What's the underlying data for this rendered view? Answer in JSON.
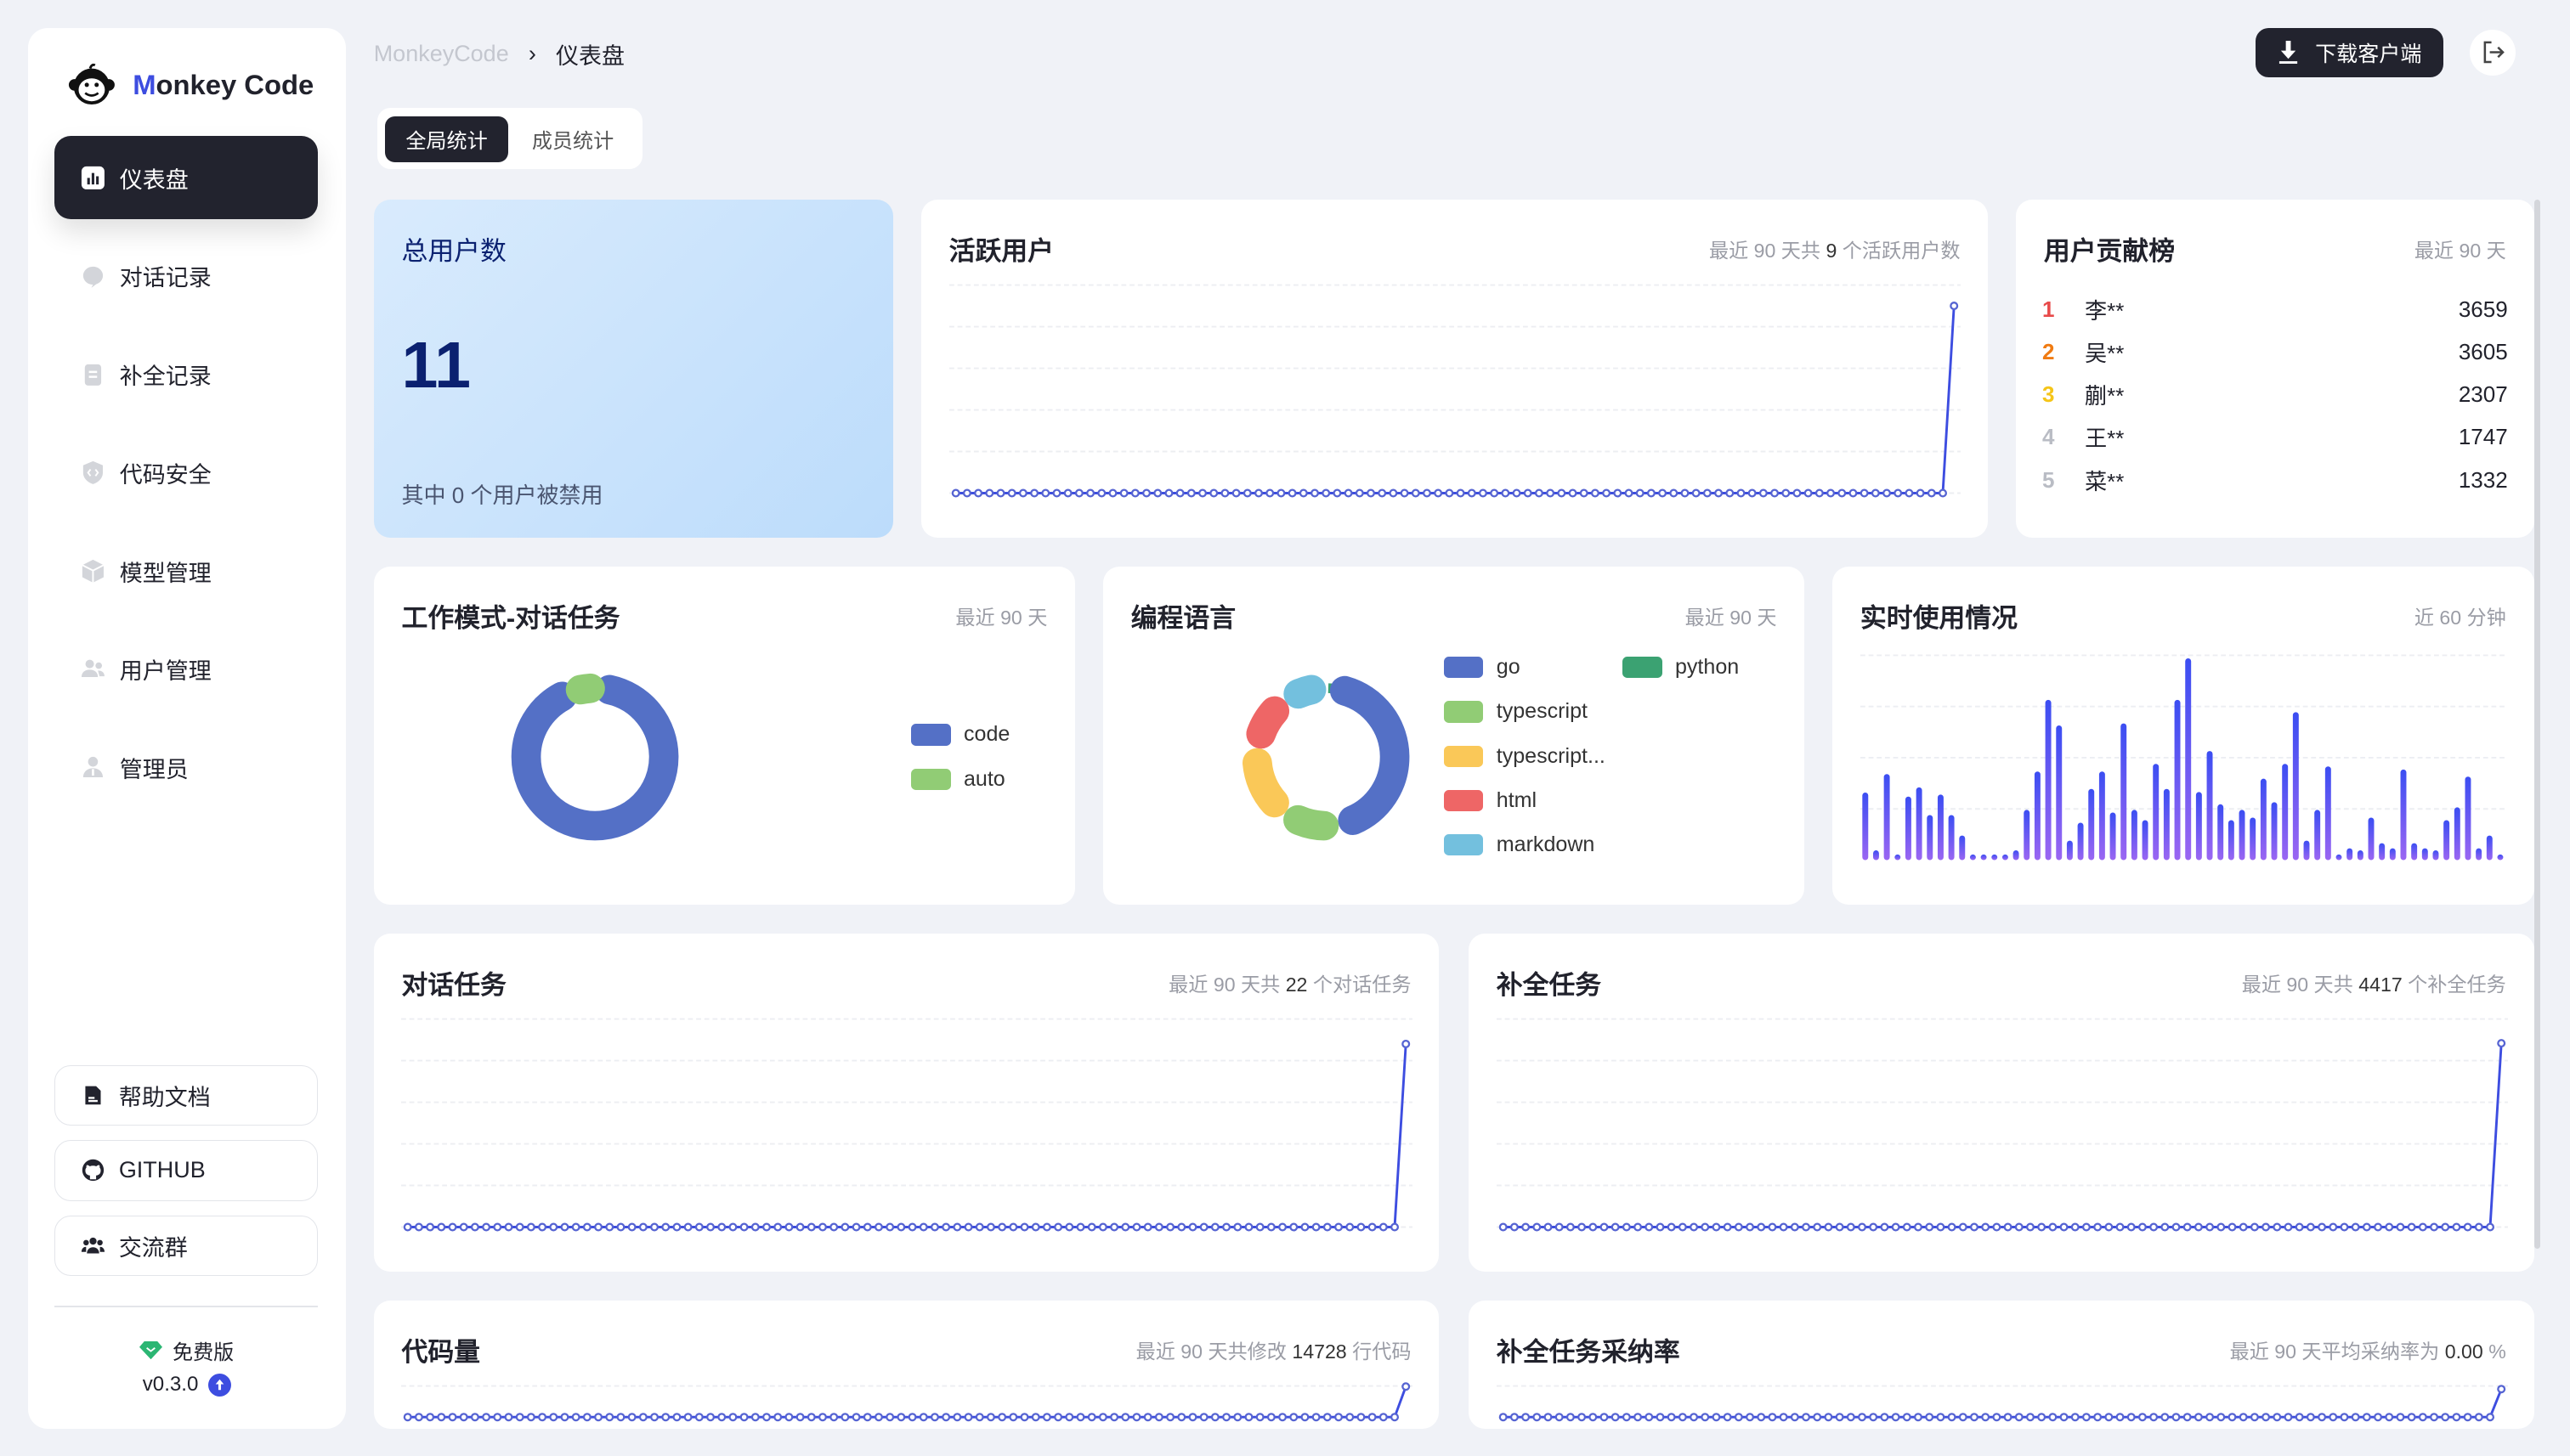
{
  "brand": {
    "prefix": "M",
    "rest": "onkey Code"
  },
  "sidebar": {
    "items": [
      {
        "label": "仪表盘",
        "icon": "bar-chart-icon",
        "active": true
      },
      {
        "label": "对话记录",
        "icon": "chat-bubble-icon"
      },
      {
        "label": "补全记录",
        "icon": "clipboard-icon"
      },
      {
        "label": "代码安全",
        "icon": "shield-code-icon"
      },
      {
        "label": "模型管理",
        "icon": "cube-icon"
      },
      {
        "label": "用户管理",
        "icon": "users-icon"
      },
      {
        "label": "管理员",
        "icon": "admin-icon"
      }
    ],
    "buttons": [
      {
        "label": "帮助文档",
        "icon": "document-icon"
      },
      {
        "label": "GITHUB",
        "icon": "github-icon"
      },
      {
        "label": "交流群",
        "icon": "group-icon"
      }
    ],
    "plan": "免费版",
    "version": "v0.3.0"
  },
  "breadcrumb": {
    "root": "MonkeyCode",
    "sep": "›",
    "current": "仪表盘"
  },
  "tabs": [
    {
      "label": "全局统计",
      "active": true
    },
    {
      "label": "成员统计"
    }
  ],
  "header": {
    "download_label": "下载客户端"
  },
  "cards": {
    "total_users": {
      "title": "总用户数",
      "value": "11",
      "note": "其中 0 个用户被禁用"
    },
    "active_users": {
      "title": "活跃用户",
      "sub_pre": "最近 90 天共",
      "sub_num": "9",
      "sub_post": "个活跃用户数"
    },
    "ranking": {
      "title": "用户贡献榜",
      "sub": "最近 90 天",
      "rows": [
        {
          "rank": "1",
          "name": "李**",
          "value": "3659",
          "color": "#e84a4a"
        },
        {
          "rank": "2",
          "name": "吴**",
          "value": "3605",
          "color": "#f07b12"
        },
        {
          "rank": "3",
          "name": "蒯**",
          "value": "2307",
          "color": "#f5c518"
        },
        {
          "rank": "4",
          "name": "王**",
          "value": "1747",
          "color": "#b9bcc4"
        },
        {
          "rank": "5",
          "name": "菜**",
          "value": "1332",
          "color": "#b9bcc4"
        }
      ]
    },
    "work_mode": {
      "title": "工作模式-对话任务",
      "sub": "最近 90 天"
    },
    "languages": {
      "title": "编程语言",
      "sub": "最近 90 天"
    },
    "realtime": {
      "title": "实时使用情况",
      "sub": "近 60 分钟"
    },
    "dialog_tasks": {
      "title": "对话任务",
      "sub_pre": "最近 90 天共",
      "sub_num": "22",
      "sub_post": "个对话任务"
    },
    "completion_tasks": {
      "title": "补全任务",
      "sub_pre": "最近 90 天共",
      "sub_num": "4417",
      "sub_post": "个补全任务"
    },
    "code_lines": {
      "title": "代码量",
      "sub_pre": "最近 90 天共修改",
      "sub_num": "14728",
      "sub_post": "行代码"
    },
    "adoption": {
      "title": "补全任务采纳率",
      "sub_pre": "最近 90 天平均采纳率为",
      "sub_num": "0.00",
      "sub_post": "%"
    }
  },
  "chart_data": [
    {
      "id": "active_users",
      "type": "line",
      "grid": true,
      "ylim": [
        0,
        10
      ],
      "values": [
        0,
        0,
        0,
        0,
        0,
        0,
        0,
        0,
        0,
        0,
        0,
        0,
        0,
        0,
        0,
        0,
        0,
        0,
        0,
        0,
        0,
        0,
        0,
        0,
        0,
        0,
        0,
        0,
        0,
        0,
        0,
        0,
        0,
        0,
        0,
        0,
        0,
        0,
        0,
        0,
        0,
        0,
        0,
        0,
        0,
        0,
        0,
        0,
        0,
        0,
        0,
        0,
        0,
        0,
        0,
        0,
        0,
        0,
        0,
        0,
        0,
        0,
        0,
        0,
        0,
        0,
        0,
        0,
        0,
        0,
        0,
        0,
        0,
        0,
        0,
        0,
        0,
        0,
        0,
        0,
        0,
        0,
        0,
        0,
        0,
        0,
        0,
        0,
        0,
        9
      ],
      "color": "#3d4de0"
    },
    {
      "id": "work_mode",
      "type": "pie",
      "donut": true,
      "legend": "right",
      "categories": [
        "code",
        "auto"
      ],
      "values": [
        21,
        1
      ],
      "colors": [
        "#5470c6",
        "#91cc75"
      ]
    },
    {
      "id": "languages",
      "type": "pie",
      "donut": true,
      "legend": "right",
      "categories": [
        "python",
        "go",
        "typescript",
        "typescript...",
        "html",
        "markdown"
      ],
      "values": [
        1,
        46,
        13,
        17,
        13,
        10
      ],
      "colors": [
        "#3ba272",
        "#5470c6",
        "#91cc75",
        "#fac858",
        "#ee6666",
        "#73c0de"
      ]
    },
    {
      "id": "realtime",
      "type": "bar",
      "grid": true,
      "ylim": [
        0,
        4
      ],
      "values": [
        1.32,
        0.19,
        1.68,
        0.11,
        1.24,
        1.42,
        0.88,
        1.28,
        0.88,
        0.48,
        0.11,
        0.11,
        0.11,
        0.11,
        0.19,
        0.98,
        1.73,
        3.13,
        2.63,
        0.38,
        0.73,
        1.39,
        1.73,
        0.93,
        2.67,
        0.98,
        0.78,
        1.88,
        1.39,
        3.13,
        3.94,
        1.33,
        2.13,
        1.09,
        0.78,
        0.98,
        0.83,
        1.59,
        1.13,
        1.88,
        2.89,
        0.38,
        0.98,
        1.83,
        0.11,
        0.23,
        0.19,
        0.83,
        0.33,
        0.23,
        1.77,
        0.33,
        0.23,
        0.19,
        0.78,
        1.03,
        1.63,
        0.23,
        0.48,
        0.11
      ]
    },
    {
      "id": "dialog_tasks",
      "type": "line",
      "grid": true,
      "ylim": [
        0,
        25
      ],
      "values": [
        0,
        0,
        0,
        0,
        0,
        0,
        0,
        0,
        0,
        0,
        0,
        0,
        0,
        0,
        0,
        0,
        0,
        0,
        0,
        0,
        0,
        0,
        0,
        0,
        0,
        0,
        0,
        0,
        0,
        0,
        0,
        0,
        0,
        0,
        0,
        0,
        0,
        0,
        0,
        0,
        0,
        0,
        0,
        0,
        0,
        0,
        0,
        0,
        0,
        0,
        0,
        0,
        0,
        0,
        0,
        0,
        0,
        0,
        0,
        0,
        0,
        0,
        0,
        0,
        0,
        0,
        0,
        0,
        0,
        0,
        0,
        0,
        0,
        0,
        0,
        0,
        0,
        0,
        0,
        0,
        0,
        0,
        0,
        0,
        0,
        0,
        0,
        0,
        0,
        22
      ],
      "color": "#3d4de0"
    },
    {
      "id": "completion_tasks",
      "type": "line",
      "grid": true,
      "ylim": [
        0,
        5000
      ],
      "values": [
        0,
        0,
        0,
        0,
        0,
        0,
        0,
        0,
        0,
        0,
        0,
        0,
        0,
        0,
        0,
        0,
        0,
        0,
        0,
        0,
        0,
        0,
        0,
        0,
        0,
        0,
        0,
        0,
        0,
        0,
        0,
        0,
        0,
        0,
        0,
        0,
        0,
        0,
        0,
        0,
        0,
        0,
        0,
        0,
        0,
        0,
        0,
        0,
        0,
        0,
        0,
        0,
        0,
        0,
        0,
        0,
        0,
        0,
        0,
        0,
        0,
        0,
        0,
        0,
        0,
        0,
        0,
        0,
        0,
        0,
        0,
        0,
        0,
        0,
        0,
        0,
        0,
        0,
        0,
        0,
        0,
        0,
        0,
        0,
        0,
        0,
        0,
        0,
        0,
        4417
      ],
      "color": "#3d4de0"
    },
    {
      "id": "code_lines",
      "type": "line",
      "grid": true,
      "ylim": [
        0,
        15000
      ],
      "values": [
        0,
        0,
        0,
        0,
        0,
        0,
        0,
        0,
        0,
        0,
        0,
        0,
        0,
        0,
        0,
        0,
        0,
        0,
        0,
        0,
        0,
        0,
        0,
        0,
        0,
        0,
        0,
        0,
        0,
        0,
        0,
        0,
        0,
        0,
        0,
        0,
        0,
        0,
        0,
        0,
        0,
        0,
        0,
        0,
        0,
        0,
        0,
        0,
        0,
        0,
        0,
        0,
        0,
        0,
        0,
        0,
        0,
        0,
        0,
        0,
        0,
        0,
        0,
        0,
        0,
        0,
        0,
        0,
        0,
        0,
        0,
        0,
        0,
        0,
        0,
        0,
        0,
        0,
        0,
        0,
        0,
        0,
        0,
        0,
        0,
        0,
        0,
        0,
        0,
        14728
      ],
      "color": "#3d4de0"
    },
    {
      "id": "adoption",
      "type": "line",
      "grid": true,
      "ylim": [
        0,
        1
      ],
      "values": [
        0,
        0,
        0,
        0,
        0,
        0,
        0,
        0,
        0,
        0,
        0,
        0,
        0,
        0,
        0,
        0,
        0,
        0,
        0,
        0,
        0,
        0,
        0,
        0,
        0,
        0,
        0,
        0,
        0,
        0,
        0,
        0,
        0,
        0,
        0,
        0,
        0,
        0,
        0,
        0,
        0,
        0,
        0,
        0,
        0,
        0,
        0,
        0,
        0,
        0,
        0,
        0,
        0,
        0,
        0,
        0,
        0,
        0,
        0,
        0,
        0,
        0,
        0,
        0,
        0,
        0,
        0,
        0,
        0,
        0,
        0,
        0,
        0,
        0,
        0,
        0,
        0,
        0,
        0,
        0,
        0,
        0,
        0,
        0,
        0,
        0,
        0,
        0,
        0,
        0.9
      ],
      "color": "#3d4de0"
    }
  ]
}
